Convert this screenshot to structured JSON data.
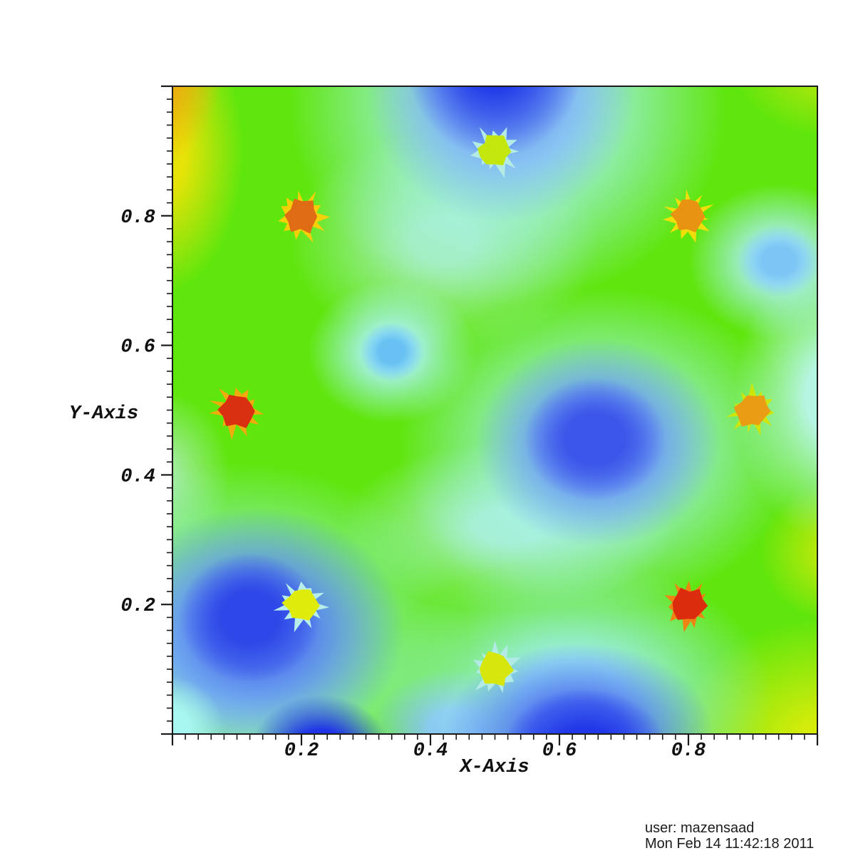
{
  "chart_data": {
    "type": "heatmap",
    "title": "",
    "xlabel": "X-Axis",
    "ylabel": "Y-Axis",
    "xlim": [
      0,
      1
    ],
    "ylim": [
      0,
      1
    ],
    "x_major_ticks": [
      0.2,
      0.4,
      0.6,
      0.8
    ],
    "y_major_ticks": [
      0.2,
      0.4,
      0.6,
      0.8
    ],
    "x_tick_labels": [
      "0.2",
      "0.4",
      "0.6",
      "0.8"
    ],
    "y_tick_labels": [
      "0.2",
      "0.4",
      "0.6",
      "0.8"
    ],
    "minor_tick_step": 0.02,
    "grid": false,
    "legend": "none",
    "colormap": "rainbow blue-to-red pseudocolor",
    "colors": {
      "background": "#ffffff",
      "axis": "#1a1a1a",
      "field_base": "#5fe60d"
    },
    "field_blobs": [
      {
        "x": 1.02,
        "y": -0.02,
        "rx": 0.25,
        "ry": 0.2,
        "color": "#d6ec0b",
        "solid": 0.2
      },
      {
        "x": 1.04,
        "y": 0.28,
        "rx": 0.13,
        "ry": 0.11,
        "color": "#c4e90b",
        "solid": 0.2
      },
      {
        "x": 1.03,
        "y": 1.03,
        "rx": 0.16,
        "ry": 0.11,
        "color": "#b4e70b",
        "solid": 0.2
      },
      {
        "x": -0.02,
        "y": 0.9,
        "rx": 0.13,
        "ry": 0.22,
        "color": "#e7e308",
        "solid": 0.3
      },
      {
        "x": -0.04,
        "y": 1.04,
        "rx": 0.12,
        "ry": 0.17,
        "color": "#ecae0e",
        "solid": 0.45
      },
      {
        "x": 0.42,
        "y": 0.76,
        "rx": 0.24,
        "ry": 0.17,
        "color": "#a4eeb6",
        "solid": 0.2
      },
      {
        "x": -0.02,
        "y": 0.4,
        "rx": 0.11,
        "ry": 0.13,
        "color": "#9eeb96",
        "solid": 0.25
      },
      {
        "x": 0.52,
        "y": 0.32,
        "rx": 0.26,
        "ry": 0.13,
        "color": "#a8efc8",
        "solid": 0.2
      },
      {
        "x": 0.52,
        "y": 0.97,
        "rx": 0.34,
        "ry": 0.31,
        "color": "#a6f1f2",
        "solid": 0.3
      },
      {
        "x": 0.51,
        "y": 1.0,
        "rx": 0.21,
        "ry": 0.21,
        "color": "#6f9cf2",
        "solid": 0.25
      },
      {
        "x": 0.5,
        "y": 1.05,
        "rx": 0.14,
        "ry": 0.16,
        "color": "#1e35e8",
        "solid": 0.3
      },
      {
        "x": 0.34,
        "y": 0.59,
        "rx": 0.13,
        "ry": 0.11,
        "color": "#aaf2f2",
        "solid": 0.25
      },
      {
        "x": 0.34,
        "y": 0.59,
        "rx": 0.05,
        "ry": 0.045,
        "color": "#68c1f2",
        "solid": 0.4
      },
      {
        "x": 1.02,
        "y": 0.52,
        "rx": 0.15,
        "ry": 0.22,
        "color": "#b7f5e3",
        "solid": 0.25
      },
      {
        "x": 0.94,
        "y": 0.73,
        "rx": 0.14,
        "ry": 0.12,
        "color": "#adeff5",
        "solid": 0.25
      },
      {
        "x": 0.94,
        "y": 0.73,
        "rx": 0.065,
        "ry": 0.055,
        "color": "#7cc6f5",
        "solid": 0.4
      },
      {
        "x": 0.66,
        "y": 0.44,
        "rx": 0.31,
        "ry": 0.25,
        "color": "#a4f0f2",
        "solid": 0.25
      },
      {
        "x": 0.66,
        "y": 0.45,
        "rx": 0.19,
        "ry": 0.16,
        "color": "#5e89f0",
        "solid": 0.3
      },
      {
        "x": 0.655,
        "y": 0.455,
        "rx": 0.11,
        "ry": 0.095,
        "color": "#3c55ea",
        "solid": 0.4
      },
      {
        "x": 0.1,
        "y": 0.13,
        "rx": 0.36,
        "ry": 0.29,
        "color": "#9ff0f0",
        "solid": 0.25
      },
      {
        "x": 0.13,
        "y": 0.16,
        "rx": 0.23,
        "ry": 0.19,
        "color": "#5078ee",
        "solid": 0.3
      },
      {
        "x": 0.12,
        "y": 0.18,
        "rx": 0.11,
        "ry": 0.1,
        "color": "#2e47e8",
        "solid": 0.4
      },
      {
        "x": -0.01,
        "y": 0.01,
        "rx": 0.09,
        "ry": 0.08,
        "color": "#a8f6f0",
        "solid": 0.4
      },
      {
        "x": 0.23,
        "y": -0.03,
        "rx": 0.11,
        "ry": 0.09,
        "color": "#1e33e8",
        "solid": 0.4
      },
      {
        "x": 0.44,
        "y": 0.01,
        "rx": 0.13,
        "ry": 0.09,
        "color": "#7fb6f2",
        "solid": 0.3
      },
      {
        "x": 0.62,
        "y": 0.06,
        "rx": 0.31,
        "ry": 0.21,
        "color": "#9feef2",
        "solid": 0.25
      },
      {
        "x": 0.63,
        "y": 0.0,
        "rx": 0.21,
        "ry": 0.14,
        "color": "#4f74f0",
        "solid": 0.35
      },
      {
        "x": 0.64,
        "y": -0.03,
        "rx": 0.13,
        "ry": 0.1,
        "color": "#2138e8",
        "solid": 0.4
      }
    ],
    "wells": [
      {
        "x": 0.2,
        "y": 0.8,
        "size": 0.075,
        "fringe_color": "#f5cf0a",
        "core_color": "#e06b15"
      },
      {
        "x": 0.5,
        "y": 0.9,
        "size": 0.075,
        "fringe_color": "#b4ece4",
        "core_color": "#c3e60d"
      },
      {
        "x": 0.8,
        "y": 0.8,
        "size": 0.075,
        "fringe_color": "#f0df0a",
        "core_color": "#e89312"
      },
      {
        "x": 0.1,
        "y": 0.5,
        "size": 0.078,
        "fringe_color": "#f0ab0d",
        "core_color": "#d83010"
      },
      {
        "x": 0.9,
        "y": 0.5,
        "size": 0.075,
        "fringe_color": "#cfe60b",
        "core_color": "#e89d15"
      },
      {
        "x": 0.2,
        "y": 0.2,
        "size": 0.075,
        "fringe_color": "#b8eeea",
        "core_color": "#dfec0b"
      },
      {
        "x": 0.5,
        "y": 0.1,
        "size": 0.075,
        "fringe_color": "#b2eae6",
        "core_color": "#d7e70e"
      },
      {
        "x": 0.8,
        "y": 0.2,
        "size": 0.075,
        "fringe_color": "#ee8414",
        "core_color": "#dc2c0e"
      }
    ],
    "annotation": {
      "user": "user: mazensaad",
      "date": "Mon Feb 14 11:42:18 2011"
    }
  }
}
